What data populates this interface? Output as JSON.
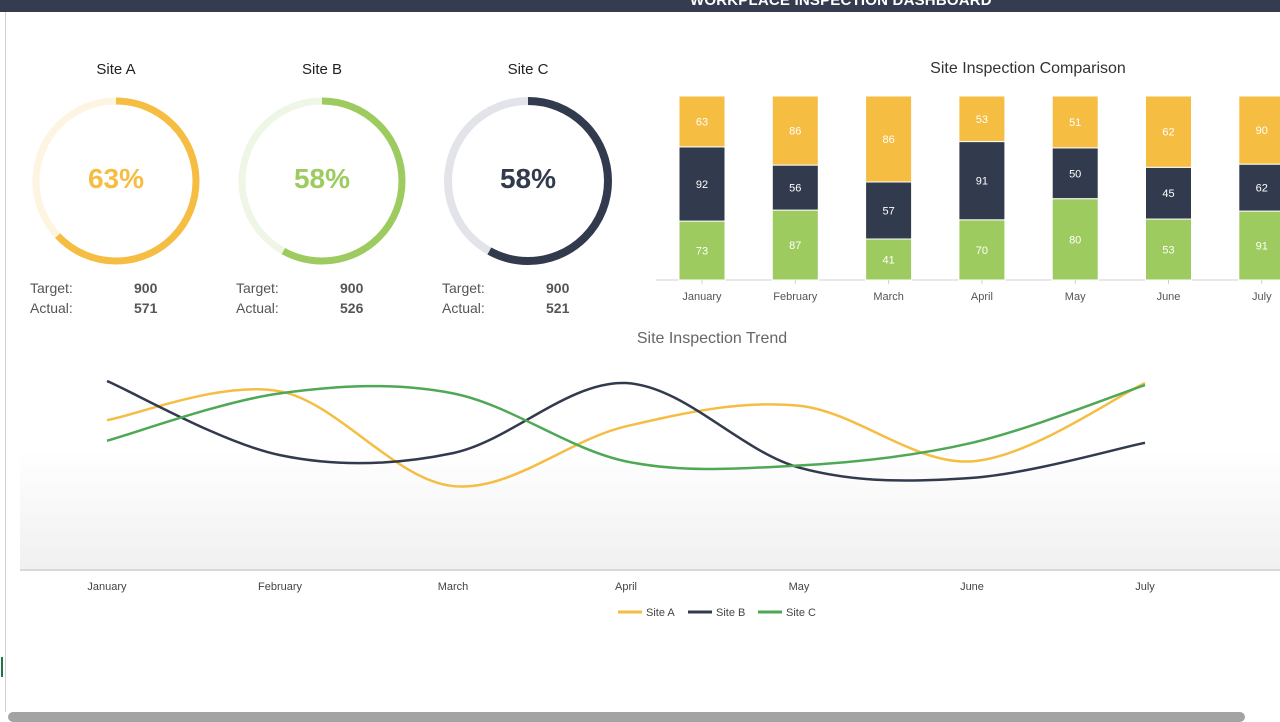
{
  "header": {
    "title": "WORKPLACE INSPECTION DASHBOARD"
  },
  "colors": {
    "yellow": "#f5bd42",
    "navy": "#323a4d",
    "green": "#9ecb5f",
    "trend_green": "#4ea855"
  },
  "gauges": [
    {
      "title": "Site A",
      "percent_label": "63%",
      "percent": 63,
      "target_label": "Target:",
      "target": "900",
      "actual_label": "Actual:",
      "actual": "571",
      "color": "#f5bd42",
      "track": "#fdf4e1"
    },
    {
      "title": "Site B",
      "percent_label": "58%",
      "percent": 58,
      "target_label": "Target:",
      "target": "900",
      "actual_label": "Actual:",
      "actual": "526",
      "color": "#9ecb5f",
      "track": "#eef6e6"
    },
    {
      "title": "Site C",
      "percent_label": "58%",
      "percent": 58,
      "target_label": "Target:",
      "target": "900",
      "actual_label": "Actual:",
      "actual": "521",
      "color": "#323a4d",
      "track": "#e2e4e9"
    }
  ],
  "chart_data": [
    {
      "type": "bar",
      "stacked": "100%",
      "title": "Site Inspection Comparison",
      "categories": [
        "January",
        "February",
        "March",
        "April",
        "May",
        "June",
        "July"
      ],
      "series": [
        {
          "values": [
            73,
            87,
            41,
            70,
            80,
            53,
            91
          ],
          "color": "#9ecb5f"
        },
        {
          "values": [
            92,
            56,
            57,
            91,
            50,
            45,
            62
          ],
          "color": "#323a4d"
        },
        {
          "values": [
            63,
            86,
            86,
            53,
            51,
            62,
            90
          ],
          "color": "#f5bd42"
        }
      ],
      "grid": false
    },
    {
      "type": "line",
      "smooth": true,
      "title": "Site Inspection Trend",
      "categories": [
        "January",
        "February",
        "March",
        "April",
        "May",
        "June",
        "July"
      ],
      "series": [
        {
          "name": "Site A",
          "values": [
            73,
            87,
            41,
            70,
            80,
            53,
            91
          ],
          "color": "#f5bd42"
        },
        {
          "name": "Site B",
          "values": [
            92,
            56,
            57,
            91,
            50,
            45,
            62
          ],
          "color": "#323a4d"
        },
        {
          "name": "Site C",
          "values": [
            63,
            86,
            86,
            53,
            51,
            62,
            90
          ],
          "color": "#4ea855"
        }
      ],
      "legend": "bottom",
      "grid": false
    }
  ]
}
